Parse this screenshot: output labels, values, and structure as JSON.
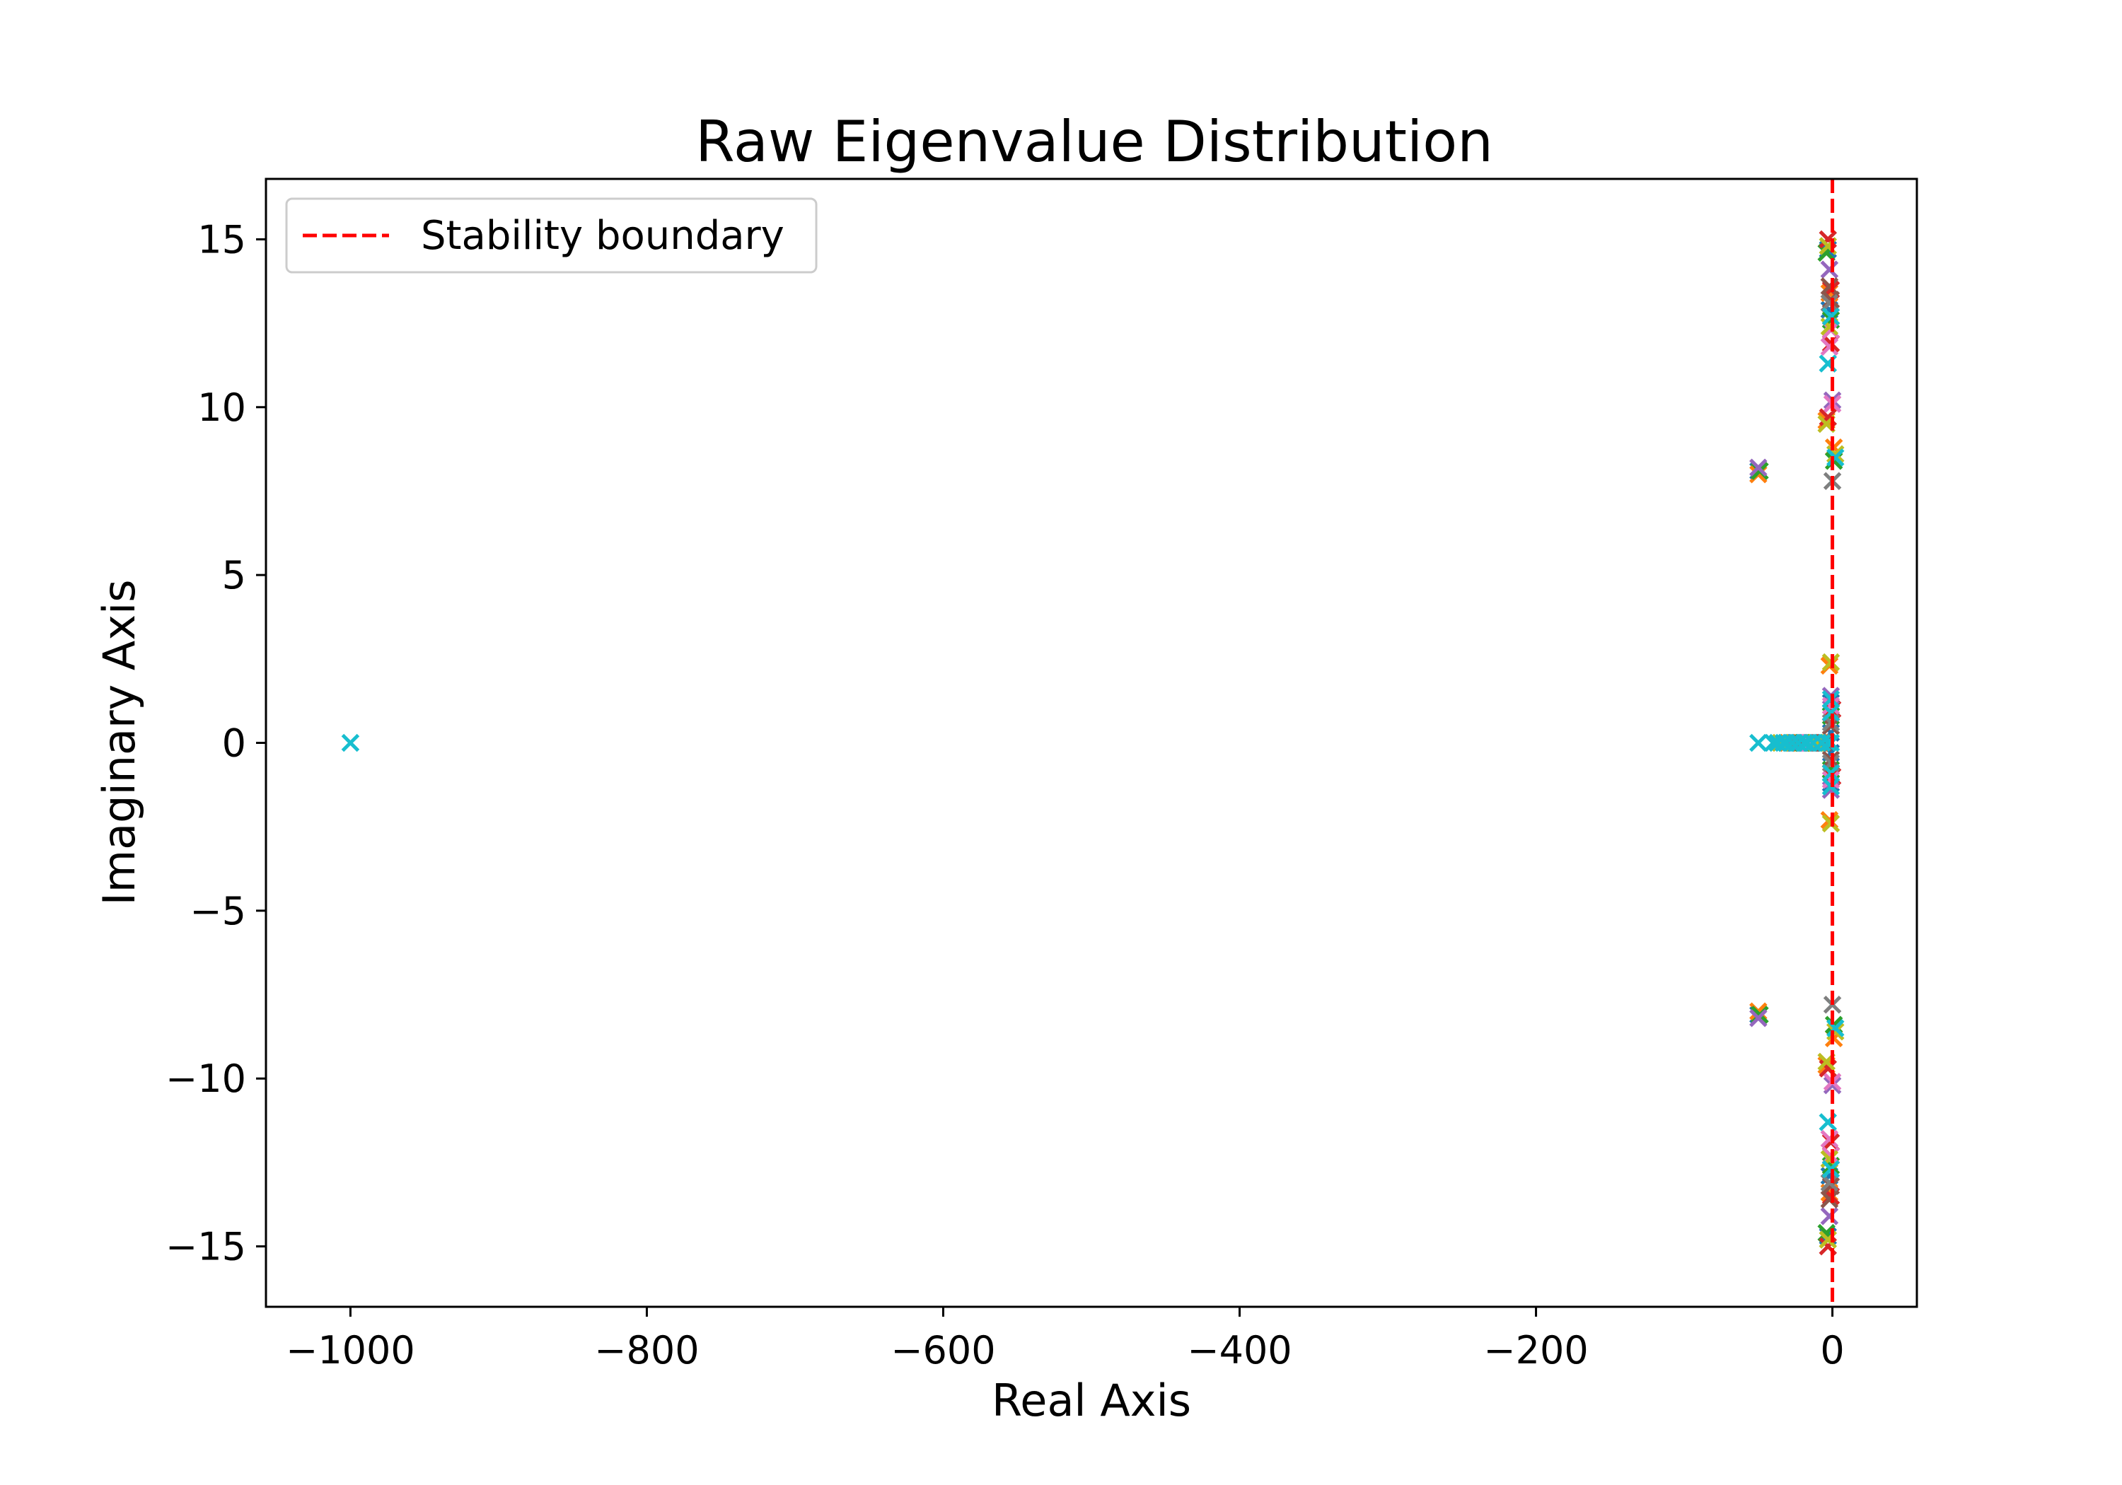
{
  "chart_data": {
    "type": "scatter",
    "title": "Raw Eigenvalue Distribution",
    "xlabel": "Real Axis",
    "ylabel": "Imaginary Axis",
    "xlim": [
      -1057,
      57
    ],
    "ylim": [
      -16.8,
      16.8
    ],
    "xticks": [
      -1000,
      -800,
      -600,
      -400,
      -200,
      0
    ],
    "yticks": [
      -15,
      -10,
      -5,
      0,
      5,
      10,
      15
    ],
    "xtick_labels": [
      "−1000",
      "−800",
      "−600",
      "−400",
      "−200",
      "0"
    ],
    "ytick_labels": [
      "−15",
      "−10",
      "−5",
      "0",
      "5",
      "10",
      "15"
    ],
    "grid": false,
    "marker": "x",
    "legend": {
      "position": "upper-left",
      "entries": [
        {
          "label": "Stability boundary",
          "style": "dashed",
          "color": "#ff0000"
        }
      ]
    },
    "reference_lines": [
      {
        "orientation": "vertical",
        "x": 0,
        "style": "dashed",
        "color": "#ff0000"
      }
    ],
    "series": [
      {
        "color": "#1f77b4",
        "points": [
          [
            -3,
            14.7
          ],
          [
            -3,
            -14.7
          ],
          [
            -2,
            12.9
          ],
          [
            -2,
            -12.9
          ],
          [
            -50,
            8.1
          ],
          [
            -50,
            -8.1
          ],
          [
            -1,
            1.2
          ],
          [
            -1,
            -1.2
          ],
          [
            -15,
            0
          ],
          [
            -25,
            0
          ],
          [
            -5,
            0
          ],
          [
            -1,
            0.3
          ],
          [
            -1,
            -0.3
          ]
        ]
      },
      {
        "color": "#ff7f0e",
        "points": [
          [
            -2,
            13.4
          ],
          [
            -2,
            -13.4
          ],
          [
            -4,
            9.6
          ],
          [
            -4,
            -9.6
          ],
          [
            1,
            8.8
          ],
          [
            1,
            -8.8
          ],
          [
            -50,
            8.0
          ],
          [
            -50,
            -8.0
          ],
          [
            -2,
            2.3
          ],
          [
            -2,
            -2.3
          ],
          [
            -8,
            0
          ],
          [
            -30,
            0
          ]
        ]
      },
      {
        "color": "#2ca02c",
        "points": [
          [
            -4,
            14.6
          ],
          [
            -4,
            -14.6
          ],
          [
            -1,
            12.6
          ],
          [
            -1,
            -12.6
          ],
          [
            1,
            8.4
          ],
          [
            1,
            -8.4
          ],
          [
            -49,
            8.1
          ],
          [
            -49,
            -8.1
          ],
          [
            -1,
            0.8
          ],
          [
            -1,
            -0.8
          ],
          [
            -12,
            0
          ],
          [
            -20,
            0
          ]
        ]
      },
      {
        "color": "#d62728",
        "points": [
          [
            -3,
            15.0
          ],
          [
            -3,
            -15.0
          ],
          [
            -1,
            13.5
          ],
          [
            -1,
            -13.5
          ],
          [
            -1,
            11.9
          ],
          [
            -1,
            -11.9
          ],
          [
            -3,
            9.7
          ],
          [
            -3,
            -9.7
          ],
          [
            0,
            1.0
          ],
          [
            0,
            -1.0
          ],
          [
            -18,
            0
          ],
          [
            -22,
            0
          ]
        ]
      },
      {
        "color": "#9467bd",
        "points": [
          [
            -2,
            14.1
          ],
          [
            -2,
            -14.1
          ],
          [
            0,
            10.2
          ],
          [
            0,
            -10.2
          ],
          [
            -50,
            8.2
          ],
          [
            -50,
            -8.2
          ],
          [
            -1,
            1.4
          ],
          [
            -1,
            -1.4
          ],
          [
            -10,
            0
          ],
          [
            -28,
            0
          ]
        ]
      },
      {
        "color": "#8c564b",
        "points": [
          [
            -2,
            13.6
          ],
          [
            -2,
            -13.6
          ],
          [
            -1,
            13.2
          ],
          [
            -1,
            -13.2
          ],
          [
            -1,
            0.5
          ],
          [
            -1,
            -0.5
          ],
          [
            -14,
            0
          ],
          [
            -6,
            0
          ]
        ]
      },
      {
        "color": "#e377c2",
        "points": [
          [
            -1,
            12.3
          ],
          [
            -1,
            -12.3
          ],
          [
            -2,
            11.8
          ],
          [
            -2,
            -11.8
          ],
          [
            0,
            10.1
          ],
          [
            0,
            -10.1
          ],
          [
            -1,
            1.1
          ],
          [
            -1,
            -1.1
          ],
          [
            -16,
            0
          ],
          [
            -24,
            0
          ]
        ]
      },
      {
        "color": "#7f7f7f",
        "points": [
          [
            -2,
            13.1
          ],
          [
            -2,
            -13.1
          ],
          [
            0,
            7.8
          ],
          [
            0,
            -7.8
          ],
          [
            -1,
            0.6
          ],
          [
            -1,
            -0.6
          ],
          [
            -9,
            0
          ],
          [
            -26,
            0
          ]
        ]
      },
      {
        "color": "#bcbd22",
        "points": [
          [
            -3,
            14.8
          ],
          [
            -3,
            -14.8
          ],
          [
            -2,
            12.4
          ],
          [
            -2,
            -12.4
          ],
          [
            -4,
            9.5
          ],
          [
            -4,
            -9.5
          ],
          [
            2,
            8.6
          ],
          [
            2,
            -8.6
          ],
          [
            -1,
            2.4
          ],
          [
            -1,
            -2.4
          ],
          [
            -11,
            0
          ],
          [
            -35,
            0
          ]
        ]
      },
      {
        "color": "#17becf",
        "points": [
          [
            -1000,
            0
          ],
          [
            -50,
            0
          ],
          [
            -40,
            0
          ],
          [
            -37,
            0
          ],
          [
            -33,
            0
          ],
          [
            -31,
            0
          ],
          [
            -27,
            0
          ],
          [
            -23,
            0
          ],
          [
            -19,
            0
          ],
          [
            -17,
            0
          ],
          [
            -13,
            0
          ],
          [
            -7,
            0
          ],
          [
            -3,
            0
          ],
          [
            -1,
            0
          ],
          [
            -3,
            11.3
          ],
          [
            -3,
            -11.3
          ],
          [
            -1,
            12.7
          ],
          [
            -1,
            -12.7
          ],
          [
            2,
            8.5
          ],
          [
            2,
            -8.5
          ],
          [
            -1,
            1.3
          ],
          [
            -1,
            -1.3
          ],
          [
            -1,
            0.9
          ],
          [
            -1,
            -0.9
          ]
        ]
      }
    ]
  }
}
